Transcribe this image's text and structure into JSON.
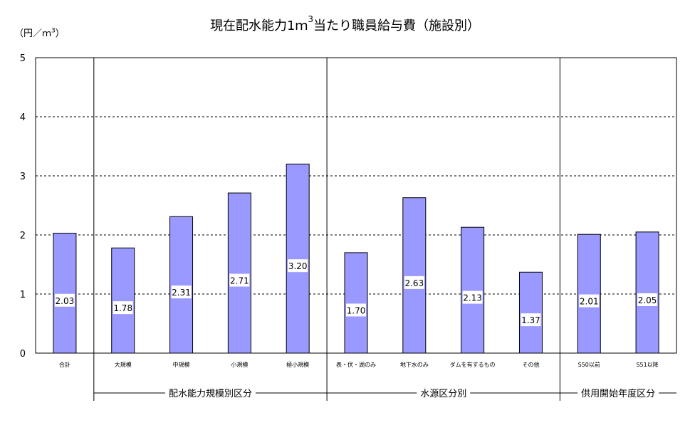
{
  "title": {
    "main": "現在配水能力1ｍ",
    "sup": "3",
    "rest": "当たり職員給与費（施設別）"
  },
  "unit": {
    "main": "（円／ｍ",
    "sup": "3",
    "rest": "）"
  },
  "chart_data": {
    "type": "bar",
    "ylim": [
      0,
      5
    ],
    "yticks": [
      0,
      1,
      2,
      3,
      4,
      5
    ],
    "grid": "dashed horizontal",
    "categories": [
      "合計",
      "大規模",
      "中規模",
      "小規模",
      "極小規模",
      "表・伏・湖のみ",
      "地下水のみ",
      "ダムを有するもの",
      "その他",
      "S50以前",
      "S51以降"
    ],
    "values": [
      2.03,
      1.78,
      2.31,
      2.71,
      3.2,
      1.7,
      2.63,
      2.13,
      1.37,
      2.01,
      2.05
    ],
    "labels": [
      "2.03",
      "1.78",
      "2.31",
      "2.71",
      "3.20",
      "1.70",
      "2.63",
      "2.13",
      "1.37",
      "2.01",
      "2.05"
    ],
    "groups": [
      {
        "label": "配水能力規模別区分",
        "start": 1,
        "end": 4
      },
      {
        "label": "水源区分別",
        "start": 5,
        "end": 8
      },
      {
        "label": "供用開始年度区分",
        "start": 9,
        "end": 10
      }
    ],
    "colors": {
      "bar": "#9999ff",
      "bar_border": "#000000"
    }
  }
}
